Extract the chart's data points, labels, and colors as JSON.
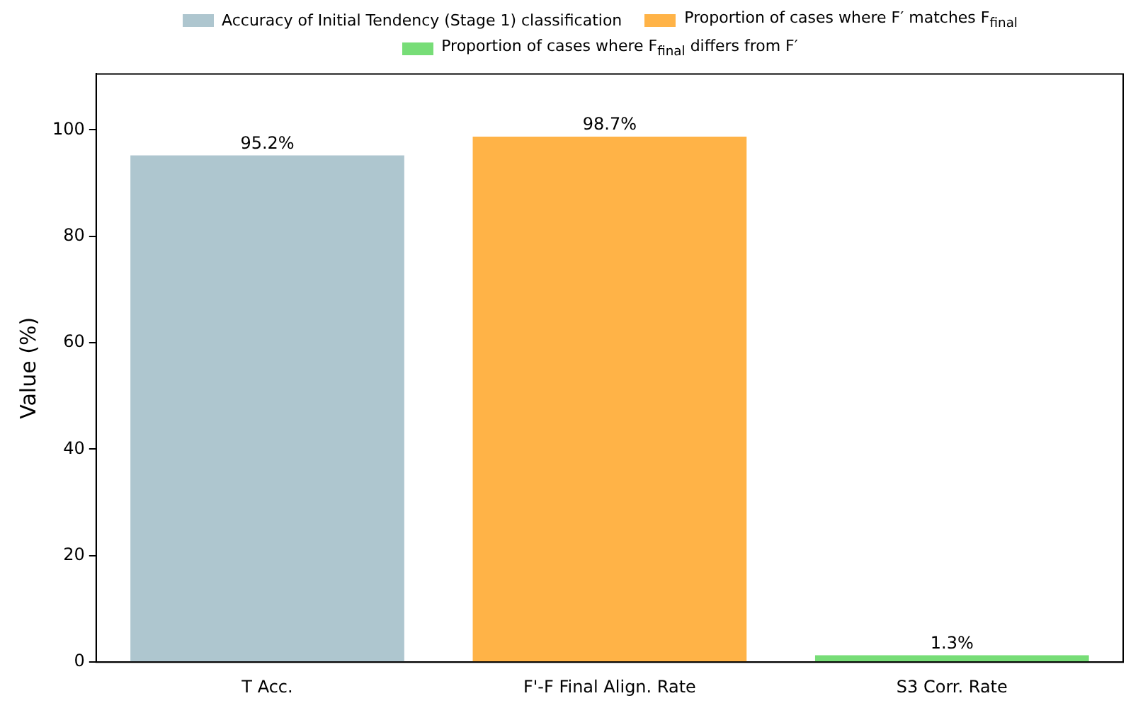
{
  "chart_data": {
    "type": "bar",
    "ylabel": "Value (%)",
    "categories": [
      "T Acc.",
      "F'-F Final Align. Rate",
      "S3 Corr. Rate"
    ],
    "series": [
      {
        "name": "Accuracy of Initial Tendency (Stage 1) classification",
        "color": "#aec6cf",
        "values": [
          95.2,
          null,
          null
        ],
        "value_labels": [
          "95.2%",
          null,
          null
        ]
      },
      {
        "name": "Proportion of cases where F′ matches F$_{final}$",
        "color": "#ffb347",
        "values": [
          null,
          98.7,
          null
        ],
        "value_labels": [
          null,
          "98.7%",
          null
        ]
      },
      {
        "name": "Proportion of cases where F$_{final}$ differs from F′",
        "color": "#77dd77",
        "values": [
          null,
          null,
          1.3
        ],
        "value_labels": [
          null,
          null,
          "1.3%"
        ]
      }
    ],
    "ylim": [
      0,
      110.5
    ],
    "yticks": [
      0,
      20,
      40,
      60,
      80,
      100
    ],
    "grid": false,
    "legend": "top"
  }
}
